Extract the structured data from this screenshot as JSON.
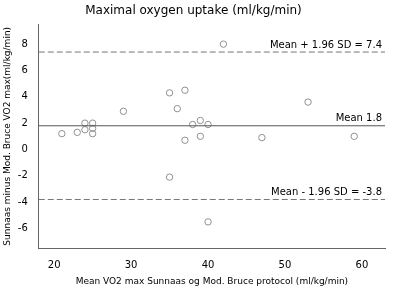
{
  "chart_data": {
    "type": "scatter",
    "title": "Maximal oxygen uptake (ml/kg/min)",
    "xlabel": "Mean VO2 max Sunnaas og Mod. Bruce protocol (ml/kg/min)",
    "ylabel": "Sunnaas minus Mod. Bruce VO2 max(ml/kg/min)",
    "x": [
      21,
      23,
      24,
      24,
      25,
      25,
      25,
      29,
      35,
      35,
      36,
      37,
      37,
      38,
      39,
      39,
      40,
      42,
      47,
      53,
      40,
      59
    ],
    "values": [
      1.2,
      1.3,
      1.5,
      2.0,
      1.2,
      1.6,
      2.0,
      2.9,
      -2.1,
      4.3,
      3.1,
      0.7,
      4.5,
      1.9,
      1.0,
      2.2,
      1.9,
      8.0,
      0.9,
      3.6,
      -5.5,
      1.0
    ],
    "color": "#909090",
    "marker": "circle",
    "xlim": [
      18,
      63
    ],
    "ylim": [
      -7.5,
      9.5
    ],
    "xticks": [
      20,
      30,
      40,
      50,
      60
    ],
    "yticks": [
      -6,
      -4,
      -2,
      0,
      2,
      4,
      6,
      8
    ],
    "grid": false,
    "annotations": [
      {
        "text": "Mean + 1.96 SD = 7.4",
        "y": 7.4,
        "line_style": "dashed"
      },
      {
        "text": "Mean 1.8",
        "y": 1.8,
        "line_style": "solid"
      },
      {
        "text": "Mean - 1.96 SD = -3.8",
        "y": -3.8,
        "line_style": "dashed"
      }
    ]
  }
}
